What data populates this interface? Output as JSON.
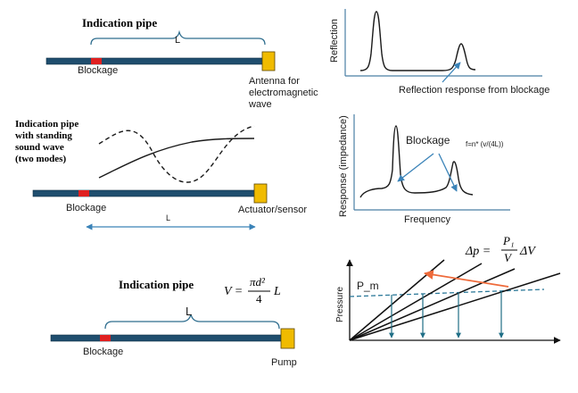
{
  "panel1": {
    "title": "Indication pipe",
    "length_label": "L",
    "blockage_label": "Blockage",
    "antenna_label_lines": [
      "Antenna for",
      "electromagnetic",
      "wave"
    ]
  },
  "panel2": {
    "title_lines": [
      "Indication pipe",
      "with standing",
      "sound wave",
      "(two modes)"
    ],
    "blockage_label": "Blockage",
    "actuator_label": "Actuator/sensor",
    "length_label": "L"
  },
  "panel3": {
    "title": "Indication pipe",
    "length_label": "L",
    "blockage_label": "Blockage",
    "pump_label": "Pump",
    "formula": {
      "lhs": "V =",
      "num": "πd²",
      "den": "4",
      "tail": "L"
    }
  },
  "chart1": {
    "ylabel": "Reflection",
    "caption": "Reflection response from blockage"
  },
  "chart2": {
    "ylabel": "Response (impedance)",
    "xlabel": "Frequency",
    "blockage_label": "Blockage",
    "formula": "f=n* (v/(4L))"
  },
  "chart3": {
    "ylabel": "Pressure",
    "pm_label": "P_m",
    "formula": {
      "lhs": "Δp =",
      "num": "P₁",
      "den": "V",
      "tail": "ΔV"
    }
  },
  "colors": {
    "pipe": "#1f4e6e",
    "blockage": "#e02020",
    "device": "#f0bb00",
    "bracket": "#2e6d8e",
    "axis": "#4a7fa5",
    "arrow": "#3a83b8",
    "orange_arrow": "#ee6a3a",
    "dashed_line": "#2e7a9a"
  }
}
